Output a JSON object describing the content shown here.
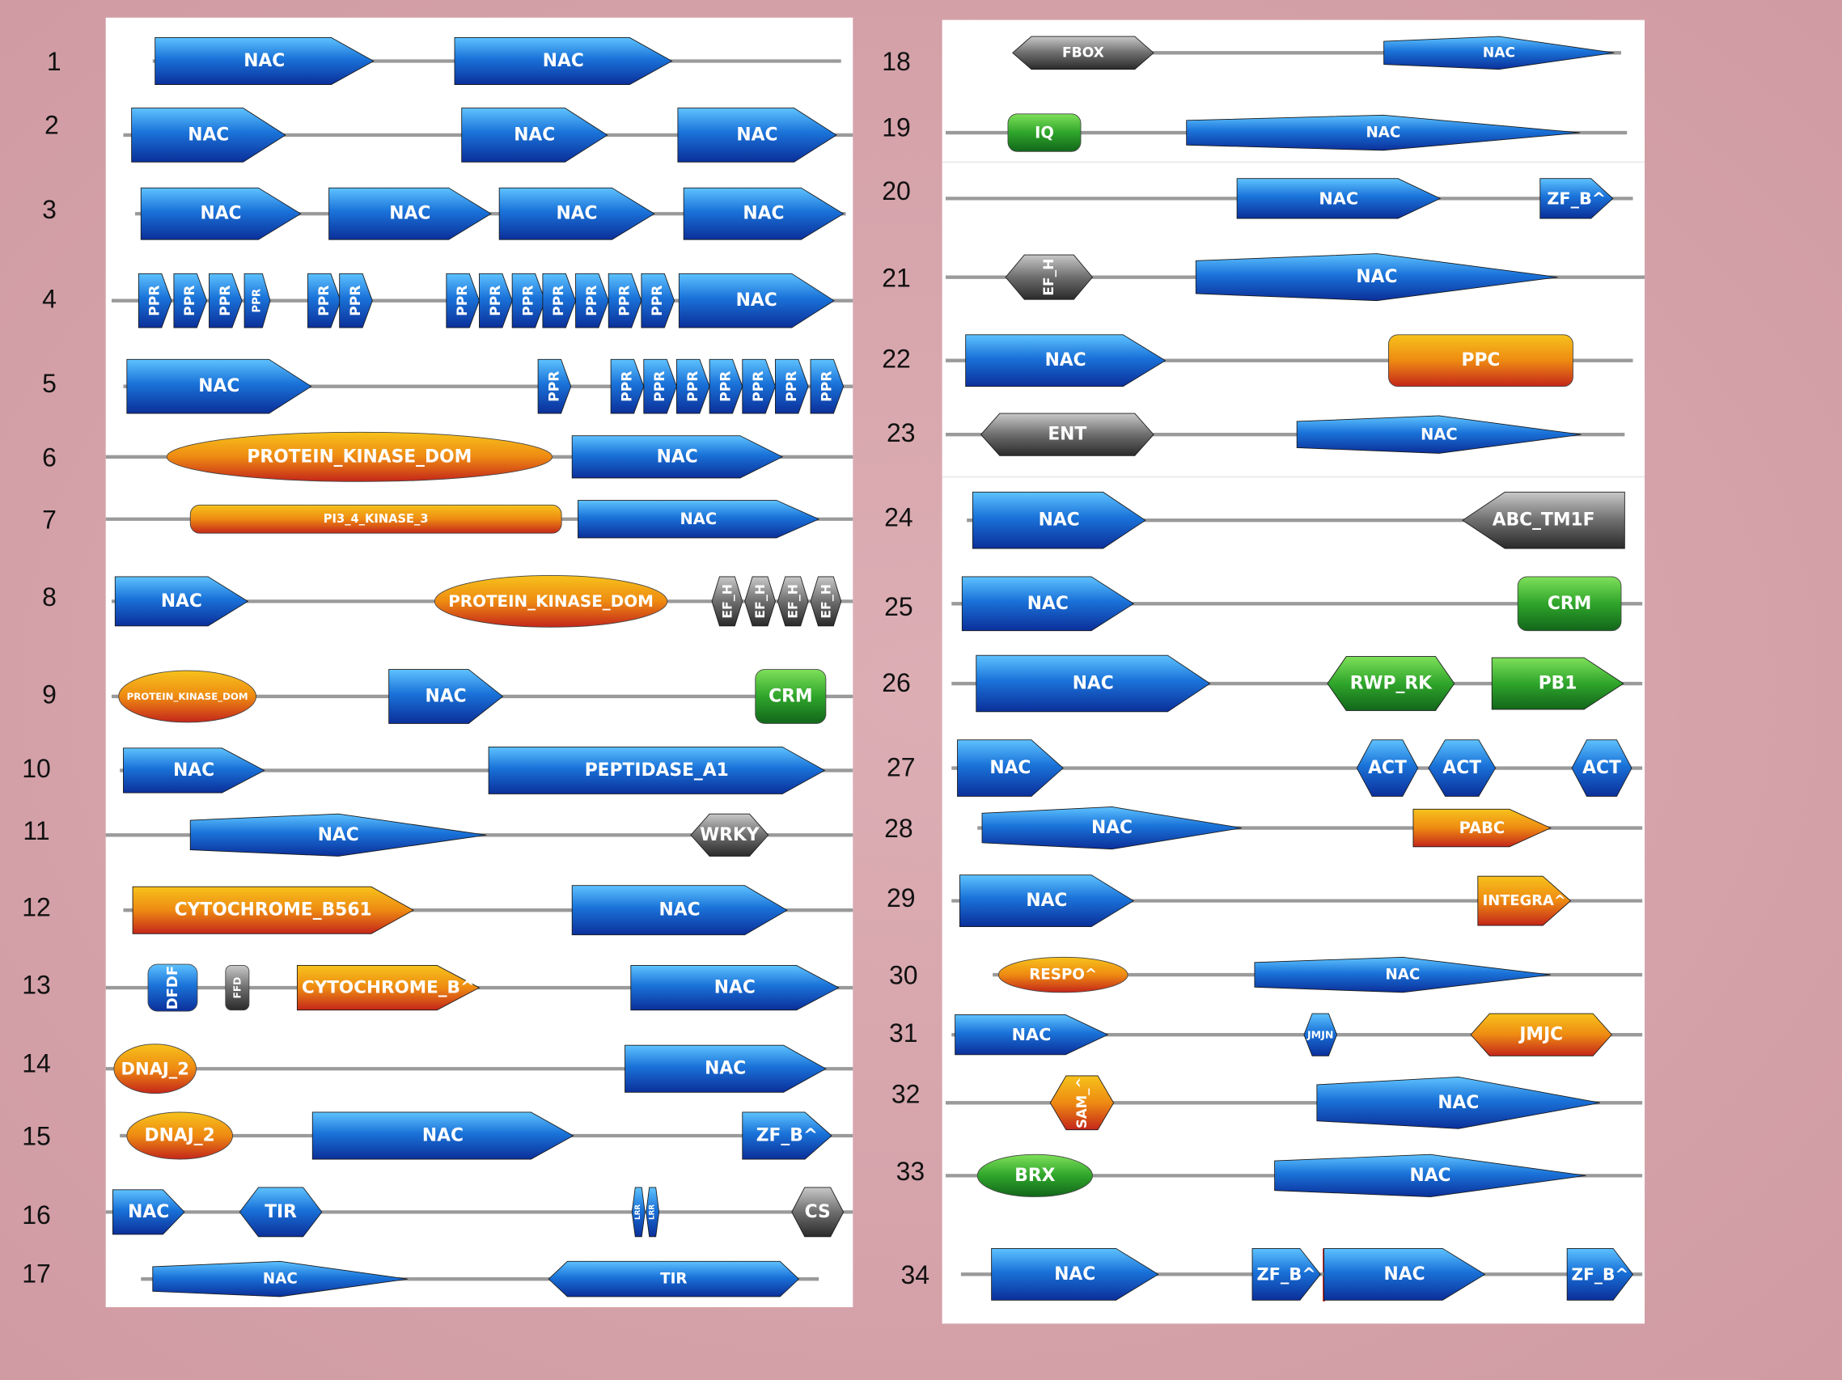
{
  "rows": [
    {
      "number": "1",
      "domains": [
        "NAC",
        "NAC"
      ]
    },
    {
      "number": "2",
      "domains": [
        "NAC",
        "NAC",
        "NAC"
      ]
    },
    {
      "number": "3",
      "domains": [
        "NAC",
        "NAC",
        "NAC",
        "NAC"
      ]
    },
    {
      "number": "4",
      "domains": [
        "PPR",
        "PPR",
        "PPR",
        "PPR",
        "PPR",
        "PPR",
        "PPR",
        "PPR",
        "PPR",
        "PPR",
        "PPR",
        "PPR",
        "PPR",
        "NAC"
      ]
    },
    {
      "number": "5",
      "domains": [
        "NAC",
        "PPR",
        "PPR",
        "PPR",
        "PPR",
        "PPR",
        "PPR",
        "PPR",
        "PPR"
      ]
    },
    {
      "number": "6",
      "domains": [
        "PROTEIN_KINASE_DOM",
        "NAC"
      ]
    },
    {
      "number": "7",
      "domains": [
        "PI3_4_KINASE_3",
        "NAC"
      ]
    },
    {
      "number": "8",
      "domains": [
        "NAC",
        "PROTEIN_KINASE_DOM",
        "EF_H",
        "EF_H",
        "EF_H",
        "EF_H"
      ]
    },
    {
      "number": "9",
      "domains": [
        "PROTEIN_KINASE_DOM",
        "NAC",
        "CRM"
      ]
    },
    {
      "number": "10",
      "domains": [
        "NAC",
        "PEPTIDASE_A1"
      ]
    },
    {
      "number": "11",
      "domains": [
        "NAC",
        "WRKY"
      ]
    },
    {
      "number": "12",
      "domains": [
        "CYTOCHROME_B561",
        "NAC"
      ]
    },
    {
      "number": "13",
      "domains": [
        "DFDF",
        "FFD",
        "CYTOCHROME_B^",
        "NAC"
      ]
    },
    {
      "number": "14",
      "domains": [
        "DNAJ_2",
        "NAC"
      ]
    },
    {
      "number": "15",
      "domains": [
        "DNAJ_2",
        "NAC",
        "ZF_B^"
      ]
    },
    {
      "number": "16",
      "domains": [
        "NAC",
        "TIR",
        "LRR",
        "LRR",
        "CS"
      ]
    },
    {
      "number": "17",
      "domains": [
        "NAC",
        "TIR"
      ]
    },
    {
      "number": "18",
      "domains": [
        "FBOX",
        "NAC"
      ]
    },
    {
      "number": "19",
      "domains": [
        "IQ",
        "NAC"
      ]
    },
    {
      "number": "20",
      "domains": [
        "NAC",
        "ZF_B^"
      ]
    },
    {
      "number": "21",
      "domains": [
        "EF_H",
        "NAC"
      ]
    },
    {
      "number": "22",
      "domains": [
        "NAC",
        "PPC"
      ]
    },
    {
      "number": "23",
      "domains": [
        "ENT",
        "NAC"
      ]
    },
    {
      "number": "24",
      "domains": [
        "NAC",
        "ABC_TM1F"
      ]
    },
    {
      "number": "25",
      "domains": [
        "NAC",
        "CRM"
      ]
    },
    {
      "number": "26",
      "domains": [
        "NAC",
        "RWP_RK",
        "PB1"
      ]
    },
    {
      "number": "27",
      "domains": [
        "NAC",
        "ACT",
        "ACT",
        "ACT"
      ]
    },
    {
      "number": "28",
      "domains": [
        "NAC",
        "PABC"
      ]
    },
    {
      "number": "29",
      "domains": [
        "NAC",
        "INTEGRA^"
      ]
    },
    {
      "number": "30",
      "domains": [
        "RESPO^",
        "NAC"
      ]
    },
    {
      "number": "31",
      "domains": [
        "NAC",
        "JMJN",
        "JMJC"
      ]
    },
    {
      "number": "32",
      "domains": [
        "SAM_^",
        "NAC"
      ]
    },
    {
      "number": "33",
      "domains": [
        "BRX",
        "NAC"
      ]
    },
    {
      "number": "34",
      "domains": [
        "NAC",
        "ZF_B^",
        "NAC",
        "ZF_B^"
      ]
    }
  ]
}
